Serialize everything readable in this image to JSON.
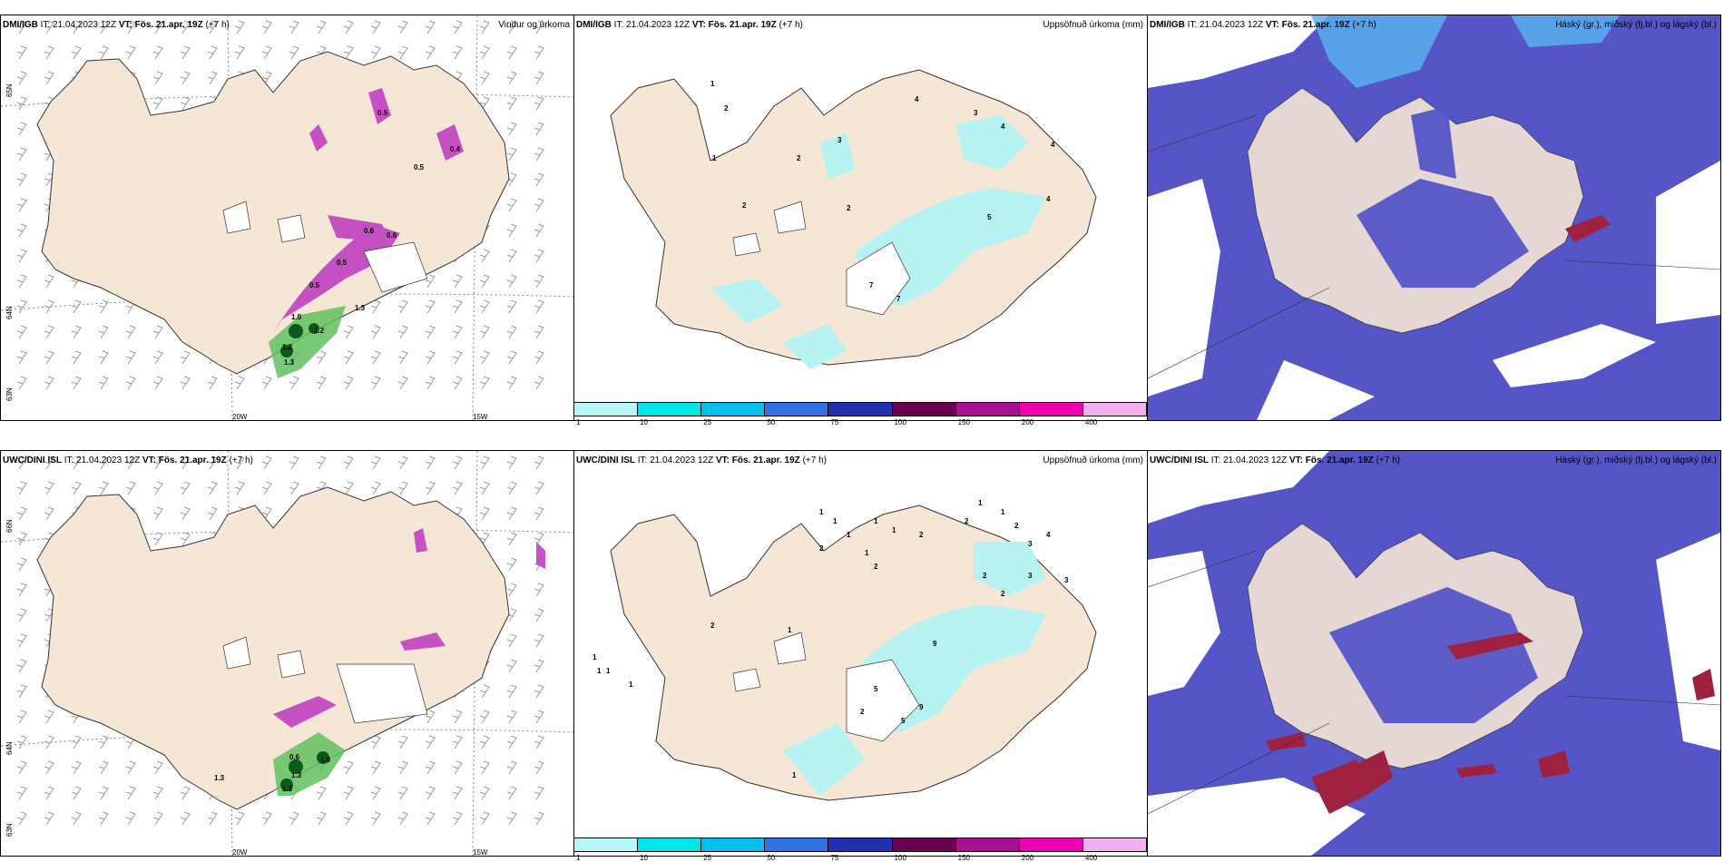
{
  "rows": [
    {
      "model": "DMI/IGB",
      "it": "IT: 21.04.2023 12Z",
      "vt_label": "VT:",
      "vt": "Fös. 21.apr. 19Z",
      "lead": "(+7 h)",
      "titles": [
        "Vindur og úrkoma",
        "Uppsöfnuð úrkoma (mm)",
        "Háský (gr.), miðský (fj.bl.) og lágský (bl.)"
      ],
      "lat_labels": [
        "65N",
        "64N",
        "63N"
      ],
      "lon_labels": [
        "20W",
        "15W"
      ],
      "precip_labels": [
        "0.5",
        "0.5",
        "0.4",
        "0.6",
        "0.6",
        "0.5",
        "0.5",
        "1.0",
        "1.2",
        "1.2",
        "1.3",
        "1.3"
      ],
      "accum_labels": [
        "1",
        "2",
        "1",
        "3",
        "4",
        "2",
        "3",
        "4",
        "2",
        "2",
        "4",
        "5",
        "7",
        "7",
        "4"
      ]
    },
    {
      "model": "UWC/DINI ISL",
      "it": "IT: 21.04.2023 12Z",
      "vt_label": "VT:",
      "vt": "Fös. 21.apr. 19Z",
      "lead": "(+7 h)",
      "titles": [
        "",
        "Uppsöfnuð úrkoma (mm)",
        "Háský (gr.), miðský (fj.bl.) og lágský (bl.)"
      ],
      "lat_labels": [
        "66N",
        "64N",
        "63N"
      ],
      "lon_labels": [
        "20W",
        "15W"
      ],
      "precip_labels": [
        "0.6",
        "1.3",
        "1.0",
        "1.3",
        "1.3"
      ],
      "accum_labels": [
        "1",
        "1",
        "1",
        "2",
        "1",
        "1",
        "2",
        "2",
        "1",
        "1",
        "2",
        "1",
        "2",
        "3",
        "4",
        "3",
        "2",
        "2",
        "9",
        "5",
        "2",
        "1",
        "2",
        "5",
        "9",
        "3",
        "1",
        "1",
        "1",
        "1",
        "1"
      ]
    }
  ],
  "colorbar": {
    "colors": [
      "#b8f5f5",
      "#00e6e6",
      "#00c0ee",
      "#3070e0",
      "#2030b0",
      "#6a0050",
      "#a81090",
      "#f000b0",
      "#f0b0f0"
    ],
    "ticks": [
      "1",
      "10",
      "25",
      "50",
      "75",
      "100",
      "150",
      "200",
      "400"
    ]
  },
  "colors": {
    "land": "#f5e6d6",
    "sea_cloud": "#5555c8",
    "cloud_low": "#6a6ad8",
    "cloud_high": "#5bb0f0",
    "precip_magenta": "#c040c0",
    "precip_green": "#60c060",
    "accum_cyan": "#b6f2f2",
    "red_cloud": "#a02040"
  }
}
